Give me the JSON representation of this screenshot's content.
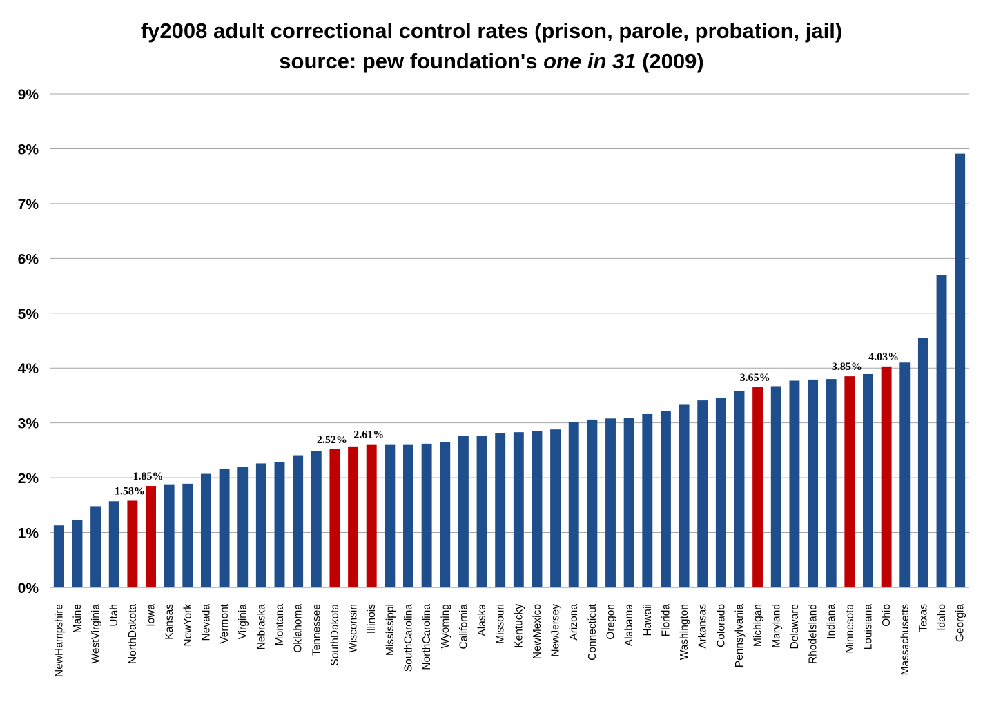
{
  "chart_data": {
    "type": "bar",
    "title": "fy2008 adult correctional control rates (prison, parole, probation, jail)",
    "subtitle_prefix": "source: pew foundation's ",
    "subtitle_italic": "one in 31",
    "subtitle_suffix": " (2009)",
    "xlabel": "",
    "ylabel": "",
    "ylim": [
      0,
      9
    ],
    "yticks": [
      "0%",
      "1%",
      "2%",
      "3%",
      "4%",
      "5%",
      "6%",
      "7%",
      "8%",
      "9%"
    ],
    "grid": true,
    "colors": {
      "default": "#1f4e8c",
      "highlight": "#c00000"
    },
    "categories": [
      "NewHampshire",
      "Maine",
      "WestVirginia",
      "Utah",
      "NorthDakota",
      "Iowa",
      "Kansas",
      "NewYork",
      "Nevada",
      "Vermont",
      "Virginia",
      "Nebraska",
      "Montana",
      "Oklahoma",
      "Tennessee",
      "SouthDakota",
      "Wisconsin",
      "Illinois",
      "Mississippi",
      "SouthCarolina",
      "NorthCarolina",
      "Wyoming",
      "California",
      "Alaska",
      "Missouri",
      "Kentucky",
      "NewMexico",
      "NewJersey",
      "Arizona",
      "Connecticut",
      "Oregon",
      "Alabama",
      "Hawaii",
      "Florida",
      "Washington",
      "Arkansas",
      "Colorado",
      "Pennsylvania",
      "Michigan",
      "Maryland",
      "Delaware",
      "RhodeIsland",
      "Indiana",
      "Minnesota",
      "Louisiana",
      "Ohio",
      "Massachusetts",
      "Texas",
      "Idaho",
      "Georgia"
    ],
    "values": [
      1.13,
      1.23,
      1.48,
      1.57,
      1.58,
      1.85,
      1.88,
      1.89,
      2.07,
      2.16,
      2.19,
      2.26,
      2.29,
      2.41,
      2.49,
      2.52,
      2.57,
      2.61,
      2.61,
      2.61,
      2.62,
      2.65,
      2.76,
      2.76,
      2.81,
      2.83,
      2.85,
      2.88,
      3.02,
      3.06,
      3.08,
      3.09,
      3.16,
      3.21,
      3.33,
      3.41,
      3.46,
      3.58,
      3.65,
      3.67,
      3.77,
      3.79,
      3.8,
      3.85,
      3.89,
      4.03,
      4.1,
      4.55,
      5.7,
      7.91
    ],
    "highlighted": [
      false,
      false,
      false,
      false,
      true,
      true,
      false,
      false,
      false,
      false,
      false,
      false,
      false,
      false,
      false,
      true,
      true,
      true,
      false,
      false,
      false,
      false,
      false,
      false,
      false,
      false,
      false,
      false,
      false,
      false,
      false,
      false,
      false,
      false,
      false,
      false,
      false,
      false,
      true,
      false,
      false,
      false,
      false,
      true,
      false,
      true,
      false,
      false,
      false,
      false
    ],
    "data_labels": [
      "",
      "",
      "",
      "",
      "1.58%",
      "1.85%",
      "",
      "",
      "",
      "",
      "",
      "",
      "",
      "",
      "",
      "2.52%",
      "",
      "2.61%",
      "",
      "",
      "",
      "",
      "",
      "",
      "",
      "",
      "",
      "",
      "",
      "",
      "",
      "",
      "",
      "",
      "",
      "",
      "",
      "",
      "3.65%",
      "",
      "",
      "",
      "",
      "3.85%",
      "",
      "4.03%",
      "",
      "",
      "",
      ""
    ]
  }
}
